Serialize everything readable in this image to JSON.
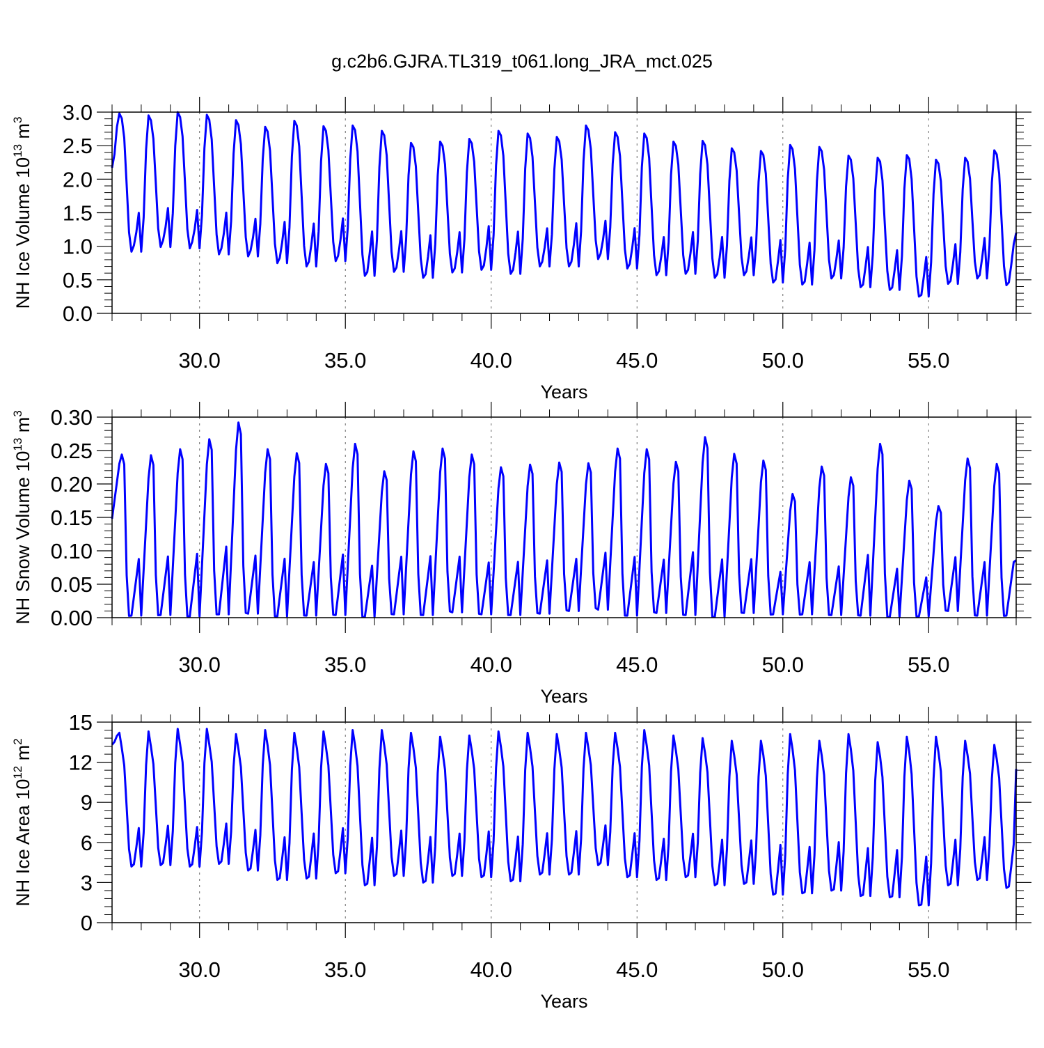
{
  "figure": {
    "title": "g.c2b6.GJRA.TL319_t061.long_JRA_mct.025",
    "line_color": "#0000ff"
  },
  "chart_data": [
    {
      "type": "line",
      "xlabel": "Years",
      "ylabel_main": "NH Ice Volume 10",
      "ylabel_exp": "13",
      "ylabel_unit": " m",
      "ylabel_unit_exp": "3",
      "xlim": [
        27.0,
        58.0
      ],
      "ylim": [
        0.0,
        3.0
      ],
      "xticks": [
        30,
        35,
        40,
        45,
        50,
        55
      ],
      "xtick_labels": [
        "30.0",
        "35.0",
        "40.0",
        "45.0",
        "50.0",
        "55.0"
      ],
      "yticks": [
        0.0,
        0.5,
        1.0,
        1.5,
        2.0,
        2.5,
        3.0
      ],
      "ytick_labels": [
        "0.0",
        "0.5",
        "1.0",
        "1.5",
        "2.0",
        "2.5",
        "3.0"
      ],
      "grid_x": "dotted vertical lines at major x ticks",
      "series": [
        {
          "start_value": 2.17,
          "end_value": 1.2,
          "peaks": [
            2.98,
            2.95,
            3.0,
            2.96,
            2.88,
            2.78,
            2.87,
            2.79,
            2.8,
            2.72,
            2.54,
            2.56,
            2.6,
            2.72,
            2.68,
            2.63,
            2.8,
            2.7,
            2.68,
            2.56,
            2.57,
            2.46,
            2.42,
            2.51,
            2.48,
            2.35,
            2.32,
            2.36,
            2.29,
            2.32,
            2.43
          ],
          "troughs": [
            0.92,
            0.99,
            0.97,
            0.88,
            0.85,
            0.75,
            0.7,
            0.78,
            0.56,
            0.62,
            0.53,
            0.61,
            0.65,
            0.59,
            0.7,
            0.7,
            0.81,
            0.67,
            0.57,
            0.59,
            0.53,
            0.57,
            0.46,
            0.43,
            0.52,
            0.39,
            0.35,
            0.25,
            0.44,
            0.52,
            0.42
          ]
        }
      ]
    },
    {
      "type": "line",
      "xlabel": "Years",
      "ylabel_main": "NH Snow Volume 10",
      "ylabel_exp": "13",
      "ylabel_unit": " m",
      "ylabel_unit_exp": "3",
      "xlim": [
        27.0,
        58.0
      ],
      "ylim": [
        0.0,
        0.3
      ],
      "xticks": [
        30,
        35,
        40,
        45,
        50,
        55
      ],
      "xtick_labels": [
        "30.0",
        "35.0",
        "40.0",
        "45.0",
        "50.0",
        "55.0"
      ],
      "yticks": [
        0.0,
        0.05,
        0.1,
        0.15,
        0.2,
        0.25,
        0.3
      ],
      "ytick_labels": [
        "0.00",
        "0.05",
        "0.10",
        "0.15",
        "0.20",
        "0.25",
        "0.30"
      ],
      "grid_x": "dotted vertical lines at major x ticks",
      "series": [
        {
          "start_value": 0.148,
          "end_value": 0.086,
          "peaks": [
            0.244,
            0.243,
            0.252,
            0.267,
            0.292,
            0.252,
            0.246,
            0.23,
            0.26,
            0.219,
            0.249,
            0.253,
            0.244,
            0.225,
            0.229,
            0.232,
            0.231,
            0.253,
            0.252,
            0.233,
            0.27,
            0.245,
            0.235,
            0.185,
            0.226,
            0.21,
            0.26,
            0.205,
            0.167,
            0.238,
            0.23
          ],
          "troughs": [
            0.003,
            0.004,
            0.002,
            0.005,
            0.006,
            0.002,
            0.003,
            0.004,
            0.001,
            0.005,
            0.004,
            0.008,
            0.005,
            0.004,
            0.006,
            0.01,
            0.012,
            0.003,
            0.007,
            0.004,
            0.001,
            0.007,
            0.005,
            0.005,
            0.004,
            0.003,
            0.001,
            0.002,
            0.01,
            0.003,
            0.003
          ]
        }
      ]
    },
    {
      "type": "line",
      "xlabel": "Years",
      "ylabel_main": "NH Ice Area 10",
      "ylabel_exp": "12",
      "ylabel_unit": " m",
      "ylabel_unit_exp": "2",
      "xlim": [
        27.0,
        58.0
      ],
      "ylim": [
        0,
        15
      ],
      "xticks": [
        30,
        35,
        40,
        45,
        50,
        55
      ],
      "xtick_labels": [
        "30.0",
        "35.0",
        "40.0",
        "45.0",
        "50.0",
        "55.0"
      ],
      "yticks": [
        0,
        3,
        6,
        9,
        12,
        15
      ],
      "ytick_labels": [
        "0",
        "3",
        "6",
        "9",
        "12",
        "15"
      ],
      "grid_x": "dotted vertical lines at major x ticks",
      "series": [
        {
          "start_value": 13.3,
          "end_value": 11.5,
          "peaks": [
            14.2,
            14.3,
            14.5,
            14.5,
            14.1,
            14.4,
            14.2,
            14.3,
            14.4,
            14.4,
            14.2,
            13.9,
            14.0,
            14.3,
            14.2,
            14.1,
            14.2,
            14.2,
            14.4,
            14.0,
            13.8,
            13.6,
            13.6,
            14.1,
            13.6,
            14.1,
            13.5,
            13.9,
            13.9,
            13.6,
            13.3
          ],
          "troughs": [
            4.2,
            4.3,
            4.2,
            4.4,
            3.9,
            3.2,
            3.3,
            3.7,
            2.8,
            3.5,
            3.0,
            3.5,
            3.4,
            3.1,
            3.6,
            3.6,
            4.3,
            3.4,
            3.2,
            3.4,
            2.8,
            2.9,
            2.1,
            2.2,
            2.4,
            2.0,
            1.9,
            1.3,
            2.8,
            3.2,
            2.6
          ]
        }
      ]
    }
  ]
}
